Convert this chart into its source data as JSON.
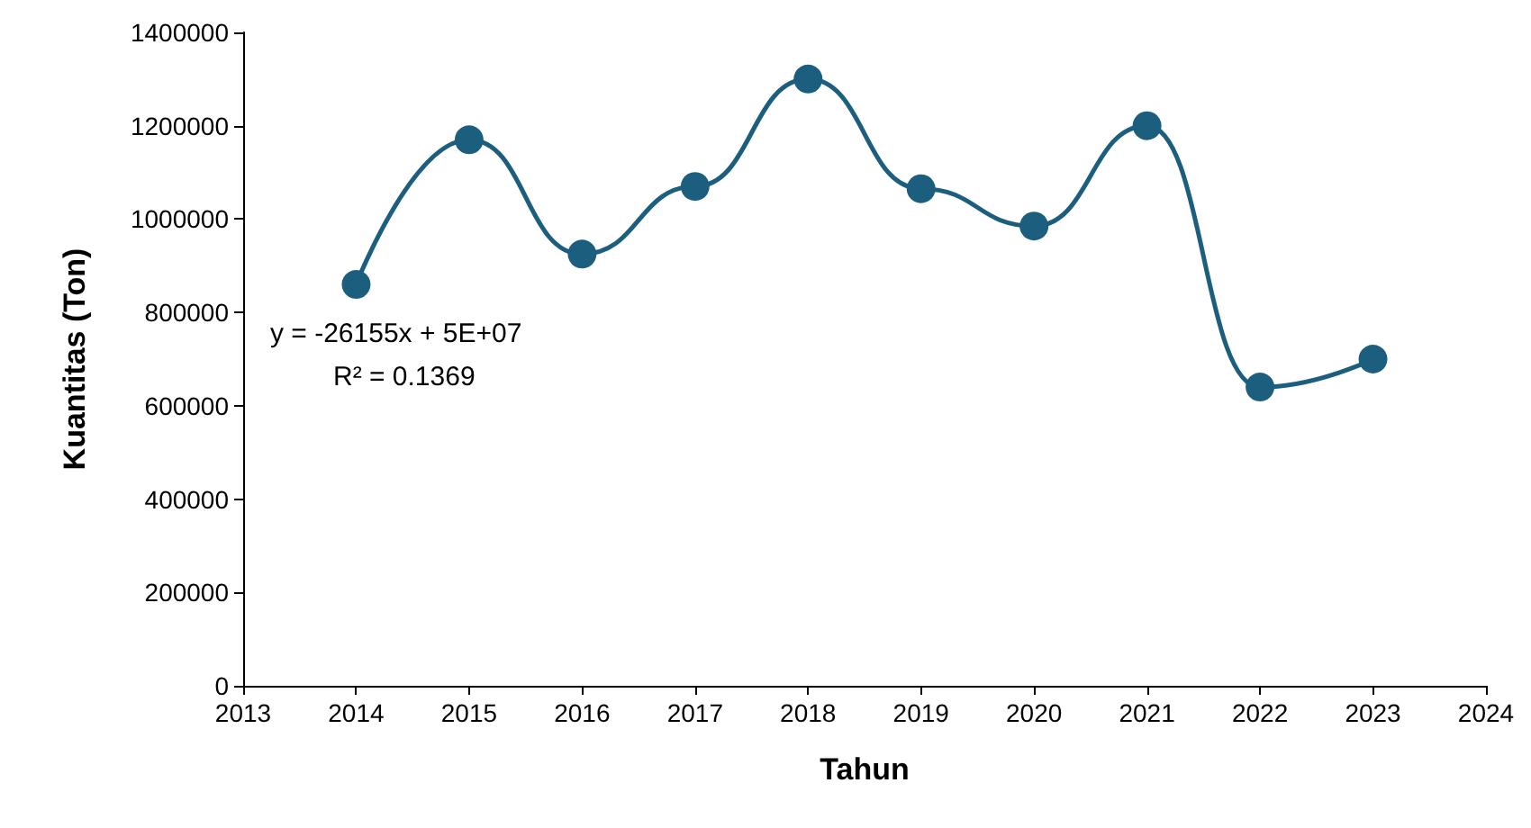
{
  "chart_data": {
    "type": "line",
    "xlabel": "Tahun",
    "ylabel": "Kuantitas (Ton)",
    "x": [
      2014,
      2015,
      2016,
      2017,
      2018,
      2019,
      2020,
      2021,
      2022,
      2023
    ],
    "series": [
      {
        "color": "#1b5e7e",
        "values": [
          860000,
          1170000,
          925000,
          1070000,
          1300000,
          1065000,
          985000,
          1200000,
          640000,
          700000
        ]
      }
    ],
    "xlim": [
      2013,
      2024
    ],
    "xticks": [
      2013,
      2014,
      2015,
      2016,
      2017,
      2018,
      2019,
      2020,
      2021,
      2022,
      2023,
      2024
    ],
    "ylim": [
      0,
      1400000
    ],
    "yticks": [
      0,
      200000,
      400000,
      600000,
      800000,
      1000000,
      1200000,
      1400000
    ],
    "annotations": [
      "y = -26155x + 5E+07",
      "R² = 0.1369"
    ],
    "grid": false,
    "marker": "circle",
    "line_style": "solid"
  }
}
